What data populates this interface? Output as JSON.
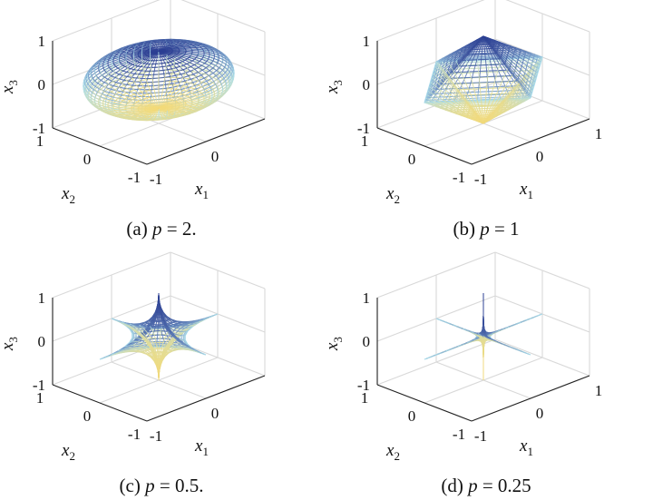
{
  "chart_data": [
    {
      "type": "surface",
      "caption_prefix": "(a)",
      "caption_var": "p",
      "caption_value": "= 2.",
      "p": 2,
      "x1_ticks": [
        "-1",
        "0"
      ],
      "x2_ticks": [
        "1",
        "0",
        "-1"
      ],
      "x3_ticks": [
        "1",
        "0",
        "-1"
      ],
      "xlabel": "x",
      "xlabel_sub": "1",
      "ylabel": "x",
      "ylabel_sub": "2",
      "zlabel": "x",
      "zlabel_sub": "3",
      "xlim": [
        -1,
        1
      ],
      "ylim": [
        -1,
        1
      ],
      "zlim": [
        -1,
        1
      ],
      "grid": true,
      "colormap_top": "#2c3f93",
      "colormap_mid": "#aee0ee",
      "colormap_bottom": "#f3da7a"
    },
    {
      "type": "surface",
      "caption_prefix": "(b)",
      "caption_var": "p",
      "caption_value": "= 1",
      "p": 1,
      "x1_ticks": [
        "-1",
        "0",
        "1"
      ],
      "x2_ticks": [
        "1",
        "0",
        "-1"
      ],
      "x3_ticks": [
        "1",
        "0",
        "-1"
      ],
      "xlabel": "x",
      "xlabel_sub": "1",
      "ylabel": "x",
      "ylabel_sub": "2",
      "zlabel": "x",
      "zlabel_sub": "3",
      "xlim": [
        -1,
        1
      ],
      "ylim": [
        -1,
        1
      ],
      "zlim": [
        -1,
        1
      ],
      "grid": true,
      "colormap_top": "#2c3f93",
      "colormap_mid": "#aee0ee",
      "colormap_bottom": "#f3da7a"
    },
    {
      "type": "surface",
      "caption_prefix": "(c)",
      "caption_var": "p",
      "caption_value": "= 0.5.",
      "p": 0.5,
      "x1_ticks": [
        "-1",
        "0"
      ],
      "x2_ticks": [
        "1",
        "0",
        "-1"
      ],
      "x3_ticks": [
        "1",
        "0",
        "-1"
      ],
      "xlabel": "x",
      "xlabel_sub": "1",
      "ylabel": "x",
      "ylabel_sub": "2",
      "zlabel": "x",
      "zlabel_sub": "3",
      "xlim": [
        -1,
        1
      ],
      "ylim": [
        -1,
        1
      ],
      "zlim": [
        -1,
        1
      ],
      "grid": true,
      "colormap_top": "#2c3f93",
      "colormap_mid": "#aee0ee",
      "colormap_bottom": "#f3da7a"
    },
    {
      "type": "surface",
      "caption_prefix": "(d)",
      "caption_var": "p",
      "caption_value": "= 0.25",
      "p": 0.25,
      "x1_ticks": [
        "-1",
        "0",
        "1"
      ],
      "x2_ticks": [
        "1",
        "0",
        "-1"
      ],
      "x3_ticks": [
        "1",
        "0",
        "-1"
      ],
      "xlabel": "x",
      "xlabel_sub": "1",
      "ylabel": "x",
      "ylabel_sub": "2",
      "zlabel": "x",
      "zlabel_sub": "3",
      "xlim": [
        -1,
        1
      ],
      "ylim": [
        -1,
        1
      ],
      "zlim": [
        -1,
        1
      ],
      "grid": true,
      "colormap_top": "#2c3f93",
      "colormap_mid": "#aee0ee",
      "colormap_bottom": "#f3da7a"
    }
  ]
}
